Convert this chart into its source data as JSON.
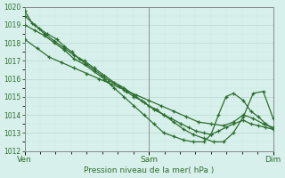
{
  "title": "Pression niveau de la mer( hPa )",
  "bg_color": "#d8f0ec",
  "grid_color_major": "#b8d8d0",
  "grid_color_minor": "#c8e8e0",
  "line_color": "#2d6e2d",
  "marker": "+",
  "ylim": [
    1012,
    1020
  ],
  "yticks": [
    1012,
    1013,
    1014,
    1015,
    1016,
    1017,
    1018,
    1019,
    1020
  ],
  "xtick_labels": [
    "Ven",
    "Sam",
    "Dim"
  ],
  "xtick_positions": [
    0,
    0.5,
    1.0
  ],
  "series": [
    {
      "x": [
        0.0,
        0.03,
        0.06,
        0.09,
        0.13,
        0.16,
        0.19,
        0.22,
        0.25,
        0.28,
        0.31,
        0.34,
        0.38,
        0.41,
        0.44,
        0.47,
        0.5,
        0.53,
        0.56,
        0.59,
        0.63,
        0.66,
        0.69,
        0.72,
        0.75,
        0.78,
        0.81,
        0.84,
        0.88,
        0.91,
        0.94,
        0.97,
        1.0
      ],
      "y": [
        1019.8,
        1019.1,
        1018.8,
        1018.5,
        1018.2,
        1017.8,
        1017.5,
        1017.1,
        1016.8,
        1016.5,
        1016.2,
        1015.9,
        1015.6,
        1015.3,
        1015.0,
        1014.8,
        1014.5,
        1014.3,
        1014.0,
        1013.8,
        1013.5,
        1013.3,
        1013.1,
        1013.0,
        1012.9,
        1013.1,
        1013.3,
        1013.5,
        1013.7,
        1013.5,
        1013.4,
        1013.3,
        1013.2
      ]
    },
    {
      "x": [
        0.0,
        0.04,
        0.08,
        0.12,
        0.16,
        0.2,
        0.24,
        0.28,
        0.32,
        0.36,
        0.4,
        0.44,
        0.48,
        0.52,
        0.56,
        0.6,
        0.64,
        0.68,
        0.72,
        0.76,
        0.8,
        0.84,
        0.88,
        0.92,
        0.96,
        1.0
      ],
      "y": [
        1019.5,
        1019.0,
        1018.5,
        1018.1,
        1017.7,
        1017.3,
        1017.0,
        1016.6,
        1016.2,
        1015.8,
        1015.5,
        1015.1,
        1014.7,
        1014.3,
        1014.0,
        1013.6,
        1013.2,
        1012.9,
        1012.7,
        1012.5,
        1012.5,
        1013.0,
        1013.9,
        1015.2,
        1015.3,
        1013.8
      ]
    },
    {
      "x": [
        0.0,
        0.04,
        0.08,
        0.12,
        0.16,
        0.2,
        0.24,
        0.28,
        0.32,
        0.36,
        0.4,
        0.44,
        0.48,
        0.52,
        0.56,
        0.6,
        0.64,
        0.68,
        0.72,
        0.75,
        0.78,
        0.81,
        0.84,
        0.88,
        0.91,
        0.94,
        0.97,
        1.0
      ],
      "y": [
        1019.0,
        1018.7,
        1018.4,
        1018.0,
        1017.6,
        1017.1,
        1016.8,
        1016.4,
        1016.0,
        1015.5,
        1015.0,
        1014.5,
        1014.0,
        1013.5,
        1013.0,
        1012.8,
        1012.6,
        1012.5,
        1012.5,
        1012.9,
        1014.0,
        1015.0,
        1015.2,
        1014.8,
        1014.2,
        1013.9,
        1013.5,
        1013.2
      ]
    },
    {
      "x": [
        0.0,
        0.05,
        0.1,
        0.15,
        0.2,
        0.25,
        0.3,
        0.35,
        0.4,
        0.45,
        0.5,
        0.55,
        0.6,
        0.65,
        0.7,
        0.75,
        0.8,
        0.84,
        0.88,
        0.92,
        0.96,
        1.0
      ],
      "y": [
        1018.2,
        1017.7,
        1017.2,
        1016.9,
        1016.6,
        1016.3,
        1016.0,
        1015.7,
        1015.4,
        1015.1,
        1014.8,
        1014.5,
        1014.2,
        1013.9,
        1013.6,
        1013.5,
        1013.4,
        1013.6,
        1014.0,
        1013.8,
        1013.5,
        1013.3
      ]
    }
  ]
}
